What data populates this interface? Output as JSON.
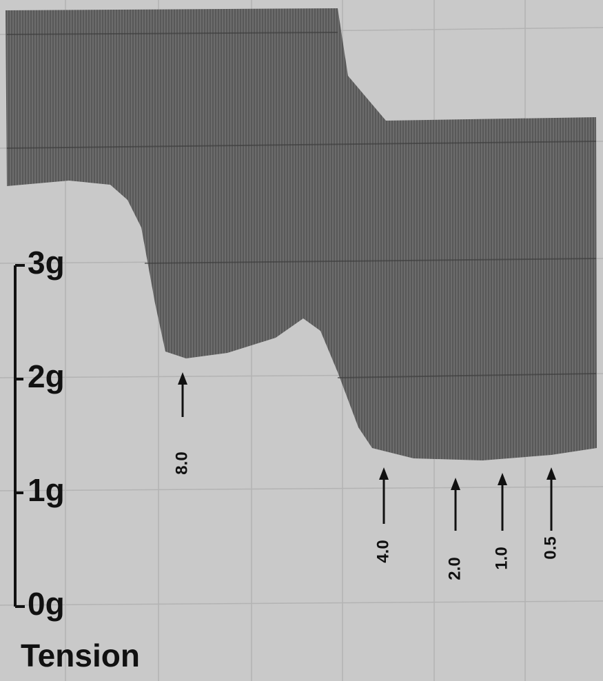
{
  "scale": {
    "labels": [
      "3g",
      "2g",
      "1g",
      "0g"
    ],
    "title": "Tension"
  },
  "annotations": [
    "8.0",
    "4.0",
    "2.0",
    "1.0",
    "0.5"
  ]
}
